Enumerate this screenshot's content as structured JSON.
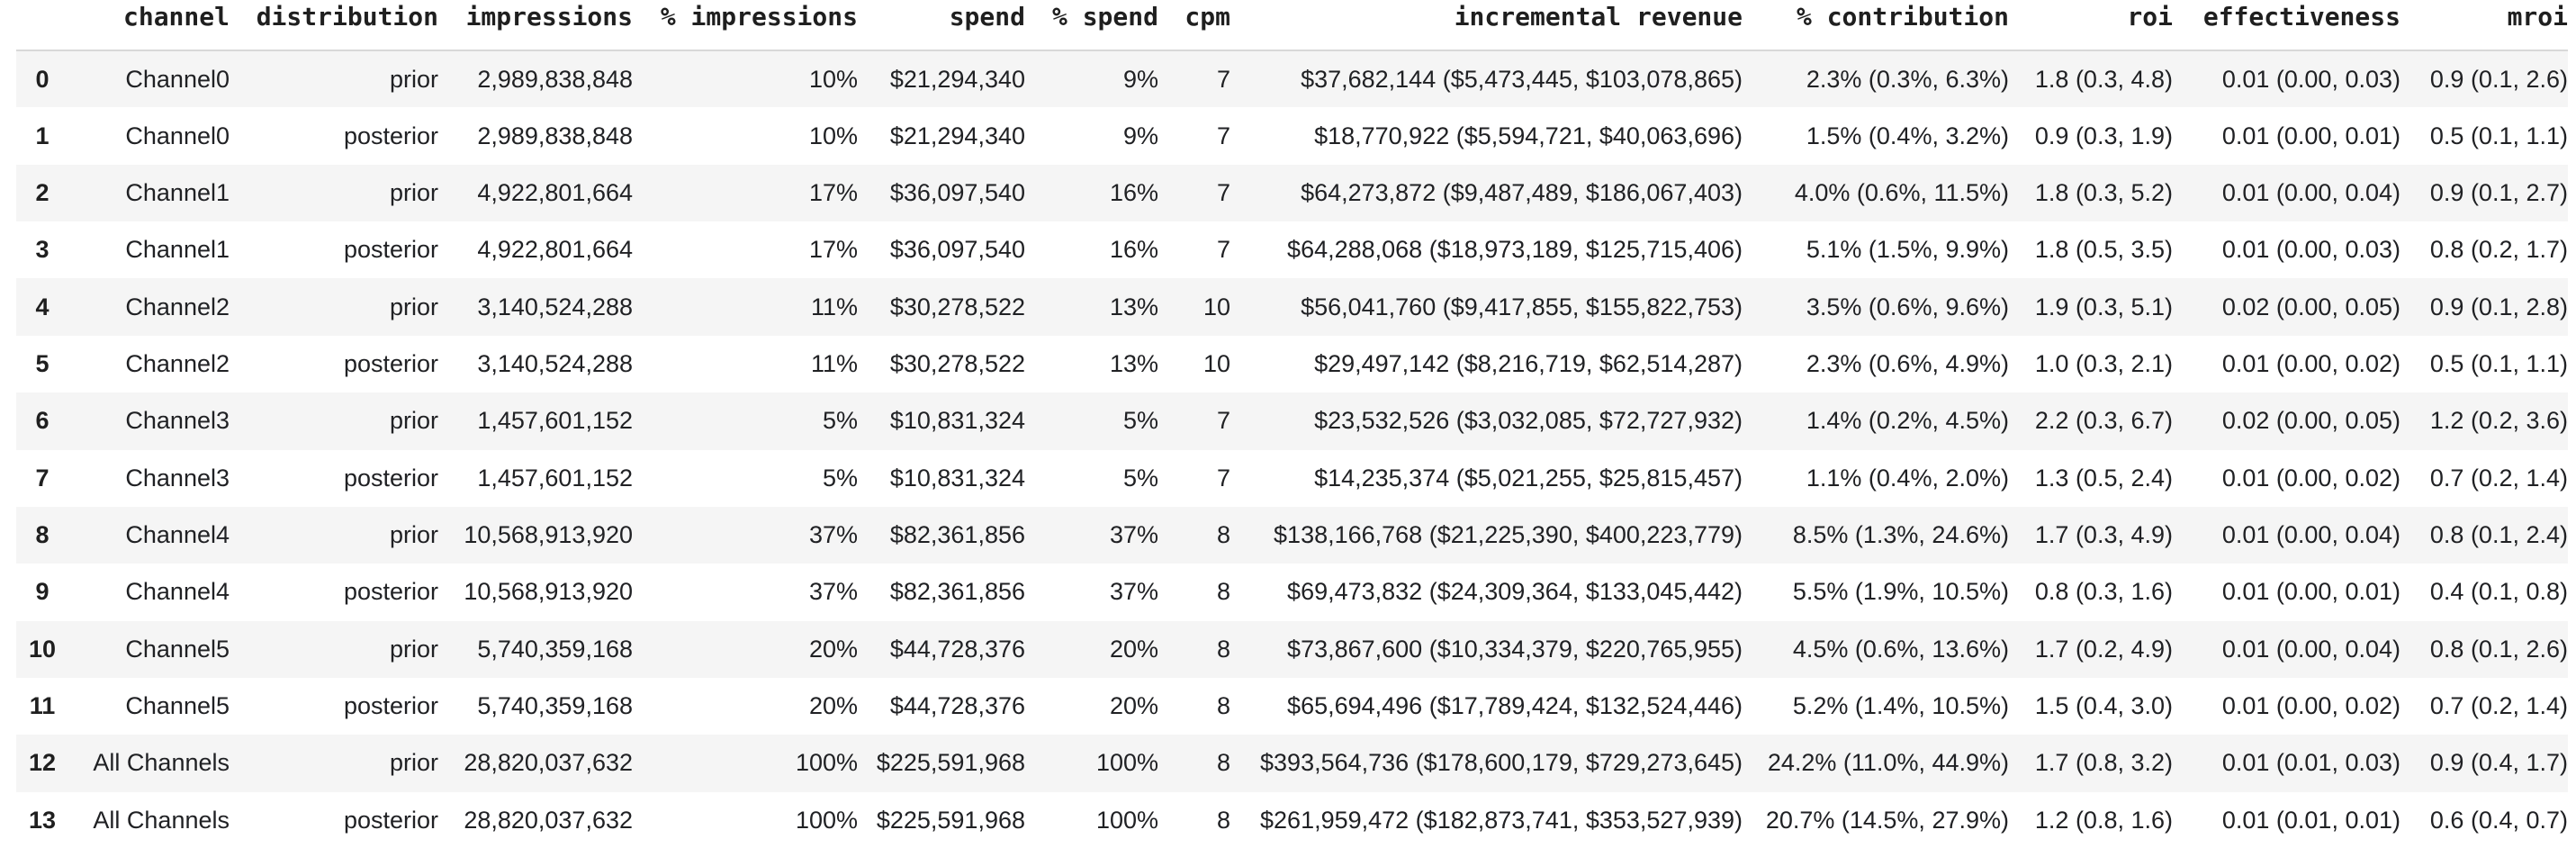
{
  "table": {
    "index_header": "",
    "columns": [
      "channel",
      "distribution",
      "impressions",
      "% impressions",
      "spend",
      "% spend",
      "cpm",
      "incremental revenue",
      "% contribution",
      "roi",
      "effectiveness",
      "mroi"
    ],
    "rows": [
      [
        "0",
        "Channel0",
        "prior",
        "2,989,838,848",
        "10%",
        "$21,294,340",
        "9%",
        "7",
        "$37,682,144 ($5,473,445, $103,078,865)",
        "2.3% (0.3%, 6.3%)",
        "1.8 (0.3, 4.8)",
        "0.01 (0.00, 0.03)",
        "0.9 (0.1, 2.6)"
      ],
      [
        "1",
        "Channel0",
        "posterior",
        "2,989,838,848",
        "10%",
        "$21,294,340",
        "9%",
        "7",
        "$18,770,922 ($5,594,721, $40,063,696)",
        "1.5% (0.4%, 3.2%)",
        "0.9 (0.3, 1.9)",
        "0.01 (0.00, 0.01)",
        "0.5 (0.1, 1.1)"
      ],
      [
        "2",
        "Channel1",
        "prior",
        "4,922,801,664",
        "17%",
        "$36,097,540",
        "16%",
        "7",
        "$64,273,872 ($9,487,489, $186,067,403)",
        "4.0% (0.6%, 11.5%)",
        "1.8 (0.3, 5.2)",
        "0.01 (0.00, 0.04)",
        "0.9 (0.1, 2.7)"
      ],
      [
        "3",
        "Channel1",
        "posterior",
        "4,922,801,664",
        "17%",
        "$36,097,540",
        "16%",
        "7",
        "$64,288,068 ($18,973,189, $125,715,406)",
        "5.1% (1.5%, 9.9%)",
        "1.8 (0.5, 3.5)",
        "0.01 (0.00, 0.03)",
        "0.8 (0.2, 1.7)"
      ],
      [
        "4",
        "Channel2",
        "prior",
        "3,140,524,288",
        "11%",
        "$30,278,522",
        "13%",
        "10",
        "$56,041,760 ($9,417,855, $155,822,753)",
        "3.5% (0.6%, 9.6%)",
        "1.9 (0.3, 5.1)",
        "0.02 (0.00, 0.05)",
        "0.9 (0.1, 2.8)"
      ],
      [
        "5",
        "Channel2",
        "posterior",
        "3,140,524,288",
        "11%",
        "$30,278,522",
        "13%",
        "10",
        "$29,497,142 ($8,216,719, $62,514,287)",
        "2.3% (0.6%, 4.9%)",
        "1.0 (0.3, 2.1)",
        "0.01 (0.00, 0.02)",
        "0.5 (0.1, 1.1)"
      ],
      [
        "6",
        "Channel3",
        "prior",
        "1,457,601,152",
        "5%",
        "$10,831,324",
        "5%",
        "7",
        "$23,532,526 ($3,032,085, $72,727,932)",
        "1.4% (0.2%, 4.5%)",
        "2.2 (0.3, 6.7)",
        "0.02 (0.00, 0.05)",
        "1.2 (0.2, 3.6)"
      ],
      [
        "7",
        "Channel3",
        "posterior",
        "1,457,601,152",
        "5%",
        "$10,831,324",
        "5%",
        "7",
        "$14,235,374 ($5,021,255, $25,815,457)",
        "1.1% (0.4%, 2.0%)",
        "1.3 (0.5, 2.4)",
        "0.01 (0.00, 0.02)",
        "0.7 (0.2, 1.4)"
      ],
      [
        "8",
        "Channel4",
        "prior",
        "10,568,913,920",
        "37%",
        "$82,361,856",
        "37%",
        "8",
        "$138,166,768 ($21,225,390, $400,223,779)",
        "8.5% (1.3%, 24.6%)",
        "1.7 (0.3, 4.9)",
        "0.01 (0.00, 0.04)",
        "0.8 (0.1, 2.4)"
      ],
      [
        "9",
        "Channel4",
        "posterior",
        "10,568,913,920",
        "37%",
        "$82,361,856",
        "37%",
        "8",
        "$69,473,832 ($24,309,364, $133,045,442)",
        "5.5% (1.9%, 10.5%)",
        "0.8 (0.3, 1.6)",
        "0.01 (0.00, 0.01)",
        "0.4 (0.1, 0.8)"
      ],
      [
        "10",
        "Channel5",
        "prior",
        "5,740,359,168",
        "20%",
        "$44,728,376",
        "20%",
        "8",
        "$73,867,600 ($10,334,379, $220,765,955)",
        "4.5% (0.6%, 13.6%)",
        "1.7 (0.2, 4.9)",
        "0.01 (0.00, 0.04)",
        "0.8 (0.1, 2.6)"
      ],
      [
        "11",
        "Channel5",
        "posterior",
        "5,740,359,168",
        "20%",
        "$44,728,376",
        "20%",
        "8",
        "$65,694,496 ($17,789,424, $132,524,446)",
        "5.2% (1.4%, 10.5%)",
        "1.5 (0.4, 3.0)",
        "0.01 (0.00, 0.02)",
        "0.7 (0.2, 1.4)"
      ],
      [
        "12",
        "All Channels",
        "prior",
        "28,820,037,632",
        "100%",
        "$225,591,968",
        "100%",
        "8",
        "$393,564,736 ($178,600,179, $729,273,645)",
        "24.2% (11.0%, 44.9%)",
        "1.7 (0.8, 3.2)",
        "0.01 (0.01, 0.03)",
        "0.9 (0.4, 1.7)"
      ],
      [
        "13",
        "All Channels",
        "posterior",
        "28,820,037,632",
        "100%",
        "$225,591,968",
        "100%",
        "8",
        "$261,959,472 ($182,873,741, $353,527,939)",
        "20.7% (14.5%, 27.9%)",
        "1.2 (0.8, 1.6)",
        "0.01 (0.01, 0.01)",
        "0.6 (0.4, 0.7)"
      ]
    ]
  },
  "colors": {
    "stripe": "#f5f5f5",
    "header_border": "#d8d8d8",
    "text": "#202124",
    "background": "#ffffff"
  }
}
